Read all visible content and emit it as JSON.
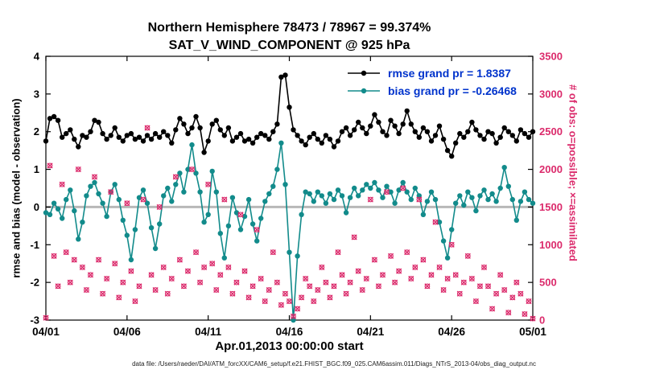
{
  "title": {
    "line1": "Northern Hemisphere 78473 / 78967 = 99.374%",
    "line2": "SAT_V_WIND_COMPONENT @ 925 hPa"
  },
  "legend": {
    "items": [
      {
        "label": "rmse grand pr = 1.8387"
      },
      {
        "label": "bias grand pr = -0.26468"
      }
    ]
  },
  "axes": {
    "left_label": "rmse and bias (model - observation)",
    "right_label": "# of obs: o=possible; ×=assimilated",
    "x_label": "Apr.01,2013 00:00:00 start",
    "left_ticks": [
      -3,
      -2,
      -1,
      0,
      1,
      2,
      3,
      4
    ],
    "right_ticks": [
      0,
      500,
      1000,
      1500,
      2000,
      2500,
      3000,
      3500
    ],
    "x_ticks": [
      {
        "day": 0,
        "label": "04/01"
      },
      {
        "day": 5,
        "label": "04/06"
      },
      {
        "day": 10,
        "label": "04/11"
      },
      {
        "day": 15,
        "label": "04/16"
      },
      {
        "day": 20,
        "label": "04/21"
      },
      {
        "day": 25,
        "label": "04/26"
      },
      {
        "day": 30,
        "label": "05/01"
      }
    ]
  },
  "caption": "data file: /Users/raeder/DAI/ATM_forcXX/CAM6_setup/f.e21.FHIST_BGC.f09_025.CAM6assim.011/Diags_NTrS_2013-04/obs_diag_output.nc",
  "colors": {
    "rmse": "#000000",
    "bias": "#128b8b",
    "obs": "#db2a6b",
    "legend_text": "#0033cc",
    "zero_line": "#b8b8b8",
    "axis": "#000000"
  },
  "chart_data": {
    "type": "line",
    "title": "Northern Hemisphere 78473 / 78967 = 99.374% | SAT_V_WIND_COMPONENT @ 925 hPa",
    "xlabel": "Apr.01,2013 00:00:00 start",
    "ylabel_left": "rmse and bias (model - observation)",
    "ylabel_right": "# of obs: o=possible; ×=assimilated",
    "xlim_days": [
      0,
      30
    ],
    "ylim_left": [
      -3,
      4
    ],
    "ylim_right": [
      0,
      3500
    ],
    "grid": false,
    "legend_position": "top-right-inside",
    "x": {
      "start": 0,
      "step": 0.25,
      "count": 121,
      "unit": "days since Apr 1 2013 00:00Z (6-hourly bins)"
    },
    "series": [
      {
        "name": "rmse",
        "axis": "left",
        "color": "#000000",
        "marker": "filled-circle",
        "grand_value": 1.8387,
        "values": [
          1.75,
          2.35,
          2.4,
          2.3,
          1.85,
          1.95,
          2.05,
          1.8,
          1.6,
          1.9,
          1.85,
          2.0,
          2.3,
          2.25,
          1.95,
          1.8,
          1.9,
          2.1,
          1.85,
          1.75,
          1.9,
          1.95,
          1.8,
          1.85,
          1.75,
          1.9,
          1.8,
          1.95,
          1.85,
          2.0,
          1.9,
          1.7,
          2.05,
          2.35,
          2.2,
          1.95,
          2.1,
          2.4,
          2.1,
          1.45,
          1.75,
          2.2,
          2.3,
          2.05,
          1.9,
          2.1,
          1.75,
          1.85,
          1.95,
          1.75,
          1.8,
          1.7,
          1.85,
          1.95,
          1.9,
          1.8,
          2.0,
          2.2,
          3.45,
          3.5,
          2.65,
          2.05,
          1.9,
          1.75,
          1.65,
          1.85,
          1.95,
          1.8,
          1.7,
          1.9,
          1.8,
          1.6,
          1.75,
          2.0,
          2.1,
          1.9,
          2.05,
          2.25,
          2.1,
          1.95,
          2.15,
          2.45,
          2.25,
          2.0,
          1.9,
          2.3,
          2.15,
          1.95,
          2.2,
          2.55,
          2.2,
          2.0,
          1.85,
          2.1,
          2.0,
          1.75,
          1.9,
          2.15,
          1.8,
          1.5,
          1.35,
          1.7,
          1.95,
          1.85,
          2.0,
          2.25,
          2.05,
          1.9,
          1.8,
          2.0,
          1.95,
          1.7,
          1.85,
          2.1,
          2.0,
          1.9,
          1.75,
          2.05,
          1.95,
          1.85,
          2.0
        ]
      },
      {
        "name": "bias",
        "axis": "left",
        "color": "#128b8b",
        "marker": "filled-circle",
        "grand_value": -0.26468,
        "values": [
          -0.15,
          -0.2,
          0.1,
          -0.05,
          -0.3,
          0.2,
          0.45,
          -0.1,
          -0.85,
          -0.4,
          0.3,
          0.55,
          0.65,
          0.35,
          0.1,
          -0.25,
          0.4,
          0.6,
          0.2,
          -0.35,
          -0.75,
          -1.4,
          -0.6,
          0.25,
          0.45,
          0.1,
          -0.55,
          -1.1,
          -0.45,
          0.3,
          0.5,
          0.15,
          0.6,
          0.9,
          0.4,
          1.0,
          1.65,
          0.9,
          0.4,
          -0.4,
          -0.2,
          0.95,
          0.4,
          -0.7,
          -1.35,
          -0.5,
          0.25,
          -0.15,
          -0.6,
          -0.25,
          0.2,
          -0.45,
          -0.9,
          -0.3,
          0.15,
          0.35,
          0.55,
          1.0,
          1.7,
          0.6,
          -1.2,
          -3.0,
          -1.3,
          -0.2,
          0.4,
          0.35,
          0.15,
          0.4,
          0.3,
          0.1,
          0.35,
          0.2,
          0.45,
          0.3,
          -0.15,
          0.25,
          0.5,
          0.3,
          0.45,
          0.6,
          0.5,
          0.65,
          0.45,
          0.25,
          0.55,
          0.4,
          0.1,
          0.45,
          0.65,
          0.4,
          0.2,
          0.5,
          0.3,
          -0.2,
          0.15,
          0.4,
          0.2,
          -0.4,
          -0.9,
          -1.35,
          -0.6,
          0.1,
          0.3,
          0.05,
          0.4,
          0.25,
          -0.1,
          0.3,
          0.45,
          0.2,
          0.35,
          0.15,
          0.5,
          1.05,
          0.55,
          0.2,
          -0.35,
          0.15,
          0.4,
          0.2,
          0.1
        ]
      },
      {
        "name": "num_obs_possible_and_assimilated",
        "axis": "right",
        "color": "#db2a6b",
        "marker": "circle-plus-cross",
        "values": [
          30,
          2050,
          850,
          450,
          1800,
          900,
          500,
          800,
          2000,
          700,
          400,
          600,
          1900,
          800,
          350,
          550,
          1700,
          750,
          300,
          500,
          1550,
          650,
          250,
          450,
          1600,
          2550,
          600,
          400,
          1500,
          700,
          350,
          550,
          1900,
          800,
          450,
          650,
          2000,
          900,
          500,
          700,
          1800,
          750,
          400,
          600,
          1600,
          700,
          350,
          500,
          1400,
          650,
          300,
          450,
          1200,
          550,
          250,
          400,
          900,
          500,
          200,
          350,
          250,
          50,
          150,
          300,
          550,
          450,
          250,
          400,
          700,
          500,
          300,
          450,
          900,
          600,
          350,
          500,
          1100,
          650,
          400,
          550,
          1600,
          800,
          450,
          600,
          1700,
          850,
          500,
          650,
          1750,
          900,
          550,
          700,
          1600,
          800,
          450,
          600,
          1300,
          700,
          400,
          550,
          1000,
          600,
          350,
          500,
          850,
          550,
          250,
          450,
          700,
          450,
          150,
          350,
          600,
          400,
          100,
          300,
          500,
          350,
          80,
          250,
          20
        ]
      }
    ]
  }
}
